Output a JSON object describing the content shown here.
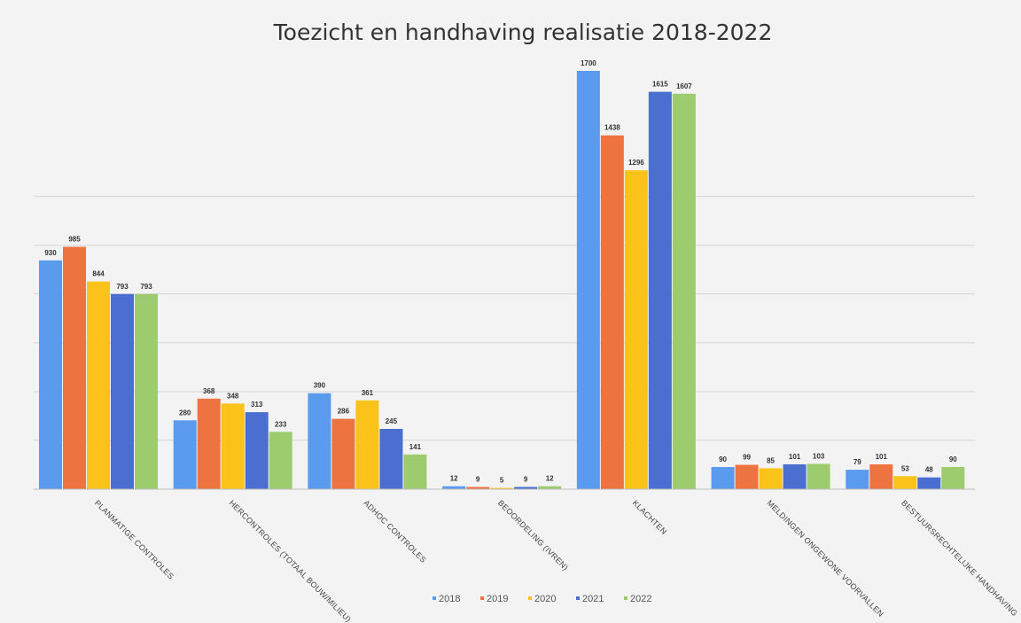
{
  "chart_data": {
    "type": "bar",
    "title": "Toezicht en handhaving realisatie 2018-2022",
    "categories": [
      "Planmatige controles",
      "Hercontroles (totaal bouw/milieu)",
      "Adhoc controles",
      "Beoordeling (IVREN)",
      "Klachten",
      "Meldingen ongewone voorvallen",
      "Bestuursrechtelijke handhaving"
    ],
    "series": [
      {
        "name": "2018",
        "color": "#5b9bee",
        "values": [
          930,
          280,
          390,
          12,
          1700,
          90,
          79
        ]
      },
      {
        "name": "2019",
        "color": "#ed7340",
        "values": [
          985,
          368,
          286,
          9,
          1438,
          99,
          101
        ]
      },
      {
        "name": "2020",
        "color": "#fbc219",
        "values": [
          844,
          348,
          361,
          5,
          1296,
          85,
          53
        ]
      },
      {
        "name": "2021",
        "color": "#4a6fd0",
        "values": [
          793,
          313,
          245,
          9,
          1615,
          101,
          48
        ]
      },
      {
        "name": "2022",
        "color": "#9ccc6e",
        "values": [
          793,
          233,
          141,
          12,
          1607,
          103,
          90
        ]
      }
    ],
    "ylim": [
      0,
      1700
    ],
    "grid": true,
    "legend": "bottom"
  }
}
